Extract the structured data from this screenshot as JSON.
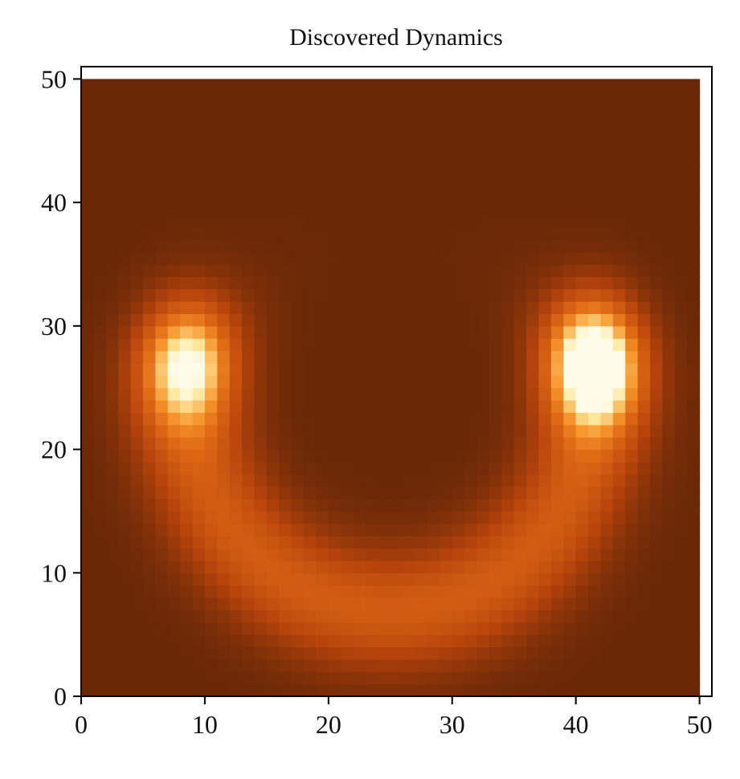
{
  "chart_data": {
    "type": "heatmap",
    "title": "Discovered Dynamics",
    "xlabel": "",
    "ylabel": "",
    "xlim": [
      0,
      51
    ],
    "ylim": [
      0,
      51
    ],
    "grid_size": 50,
    "x_ticks": [
      0,
      10,
      20,
      30,
      40,
      50
    ],
    "y_ticks": [
      0,
      10,
      20,
      30,
      40,
      50
    ],
    "grid": false,
    "legend": "none",
    "colormap": "copper-orange (dark brown to pale yellow)",
    "colors": {
      "low": "#6a2807",
      "mid_low": "#b8440c",
      "mid": "#e06a15",
      "mid_high": "#f7962c",
      "high": "#ffe79a",
      "peak": "#fffbe8"
    },
    "features": [
      {
        "name": "left-peak",
        "x": 8.5,
        "y": 27,
        "amplitude": 0.7
      },
      {
        "name": "right-peak",
        "x": 41.5,
        "y": 27,
        "amplitude": 1.0
      },
      {
        "name": "u-shaped-arc",
        "center_x": 25,
        "center_y": 25,
        "radius_x": 16.5,
        "radius_y": 18,
        "band_width": 3.2,
        "amplitude": 0.45
      }
    ]
  }
}
